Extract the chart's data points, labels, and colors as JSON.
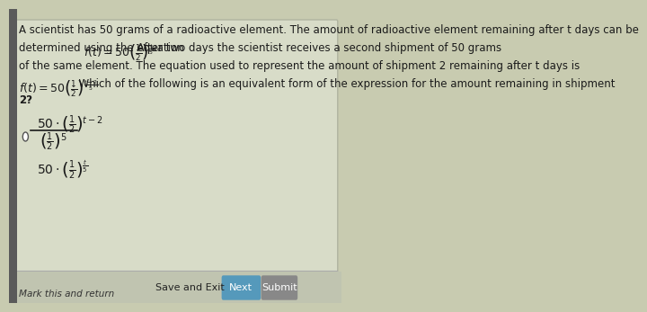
{
  "bg_color": "#e8ecd8",
  "panel_color": "#d4d8c0",
  "text_color": "#1a1a1a",
  "title_text": "A scientist has 50 grams of a radioactive element. The amount of radioactive element remaining after t days can be",
  "line2_text": "determined using the equation",
  "line2b_text": ". After two days the scientist receives a second shipment of 50 grams",
  "line3_text": "of the same element. The equation used to represent the amount of shipment 2 remaining after t days is",
  "line4b_text": ". Which of the following is an equivalent form of the expression for the amount remaining in shipment",
  "line5_text": "2?",
  "save_btn": "Save and Exit",
  "next_btn": "Next",
  "submit_btn": "Submit",
  "mark_text": "Mark this and return"
}
